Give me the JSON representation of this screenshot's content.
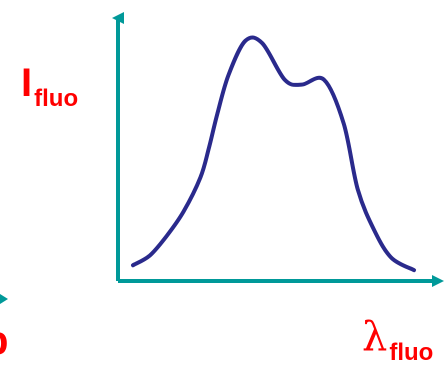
{
  "chart_data": {
    "type": "line",
    "title": "",
    "xlabel_main": "λ",
    "xlabel_sub": "fluo",
    "ylabel_main": "I",
    "ylabel_sub": "fluo",
    "left_edge_fragment": "b",
    "x": [
      0,
      0.06,
      0.12,
      0.18,
      0.24,
      0.27,
      0.3,
      0.34,
      0.4,
      0.46,
      0.54,
      0.6,
      0.68,
      0.75,
      0.8,
      0.86,
      0.92,
      1.0
    ],
    "y": [
      0.04,
      0.08,
      0.16,
      0.26,
      0.4,
      0.52,
      0.66,
      0.82,
      0.96,
      0.95,
      0.8,
      0.78,
      0.8,
      0.62,
      0.35,
      0.18,
      0.07,
      0.02
    ],
    "colors": {
      "curve": "#2a2a8c",
      "axes": "#009999",
      "labels": "#ff0000"
    }
  }
}
